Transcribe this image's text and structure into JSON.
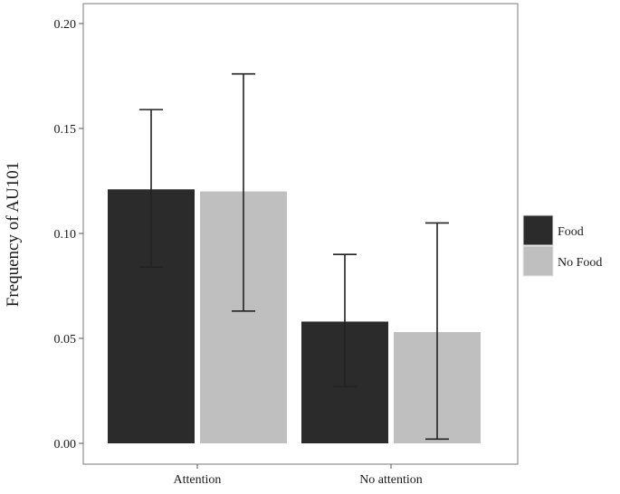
{
  "chart_data": {
    "type": "bar",
    "categories": [
      "Attention",
      "No attention"
    ],
    "series": [
      {
        "name": "Food",
        "values": [
          0.121,
          0.058
        ],
        "error_low": [
          0.084,
          0.027
        ],
        "error_high": [
          0.159,
          0.09
        ],
        "color": "#2b2b2b"
      },
      {
        "name": "No Food",
        "values": [
          0.12,
          0.053
        ],
        "error_low": [
          0.063,
          0.002
        ],
        "error_high": [
          0.176,
          0.105
        ],
        "color": "#bfbfbf"
      }
    ],
    "title": "",
    "xlabel": "",
    "ylabel": "Frequency of AU101",
    "ylim": [
      0,
      0.2
    ],
    "yticks": [
      "0.00",
      "0.05",
      "0.10",
      "0.15",
      "0.20"
    ],
    "grid": false,
    "legend_position": "right"
  }
}
